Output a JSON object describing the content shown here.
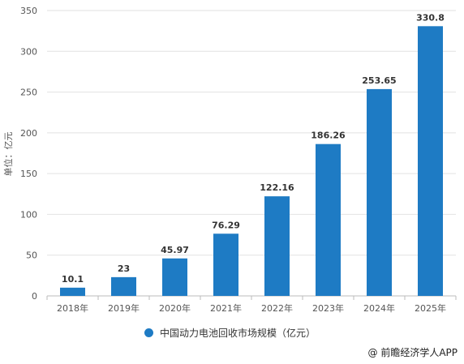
{
  "chart_data": {
    "type": "bar",
    "categories": [
      "2018年",
      "2019年",
      "2020年",
      "2021年",
      "2022年",
      "2023年",
      "2024年",
      "2025年"
    ],
    "series": [
      {
        "name": "中国动力电池回收市场规模（亿元）",
        "values": [
          10.1,
          23,
          45.97,
          76.29,
          122.16,
          186.26,
          253.65,
          330.8
        ]
      }
    ],
    "data_labels": [
      "10.1",
      "23",
      "45.97",
      "76.29",
      "122.16",
      "186.26",
      "253.65",
      "330.8"
    ],
    "ylabel": "单位：亿元",
    "ylim": [
      0,
      350
    ],
    "yticks": [
      0,
      50,
      100,
      150,
      200,
      250,
      300,
      350
    ],
    "grid": true,
    "legend_position": "bottom",
    "bar_color": "#1e7bc4",
    "grid_color": "#e2e2e2"
  },
  "source": "@ 前瞻经济学人APP"
}
